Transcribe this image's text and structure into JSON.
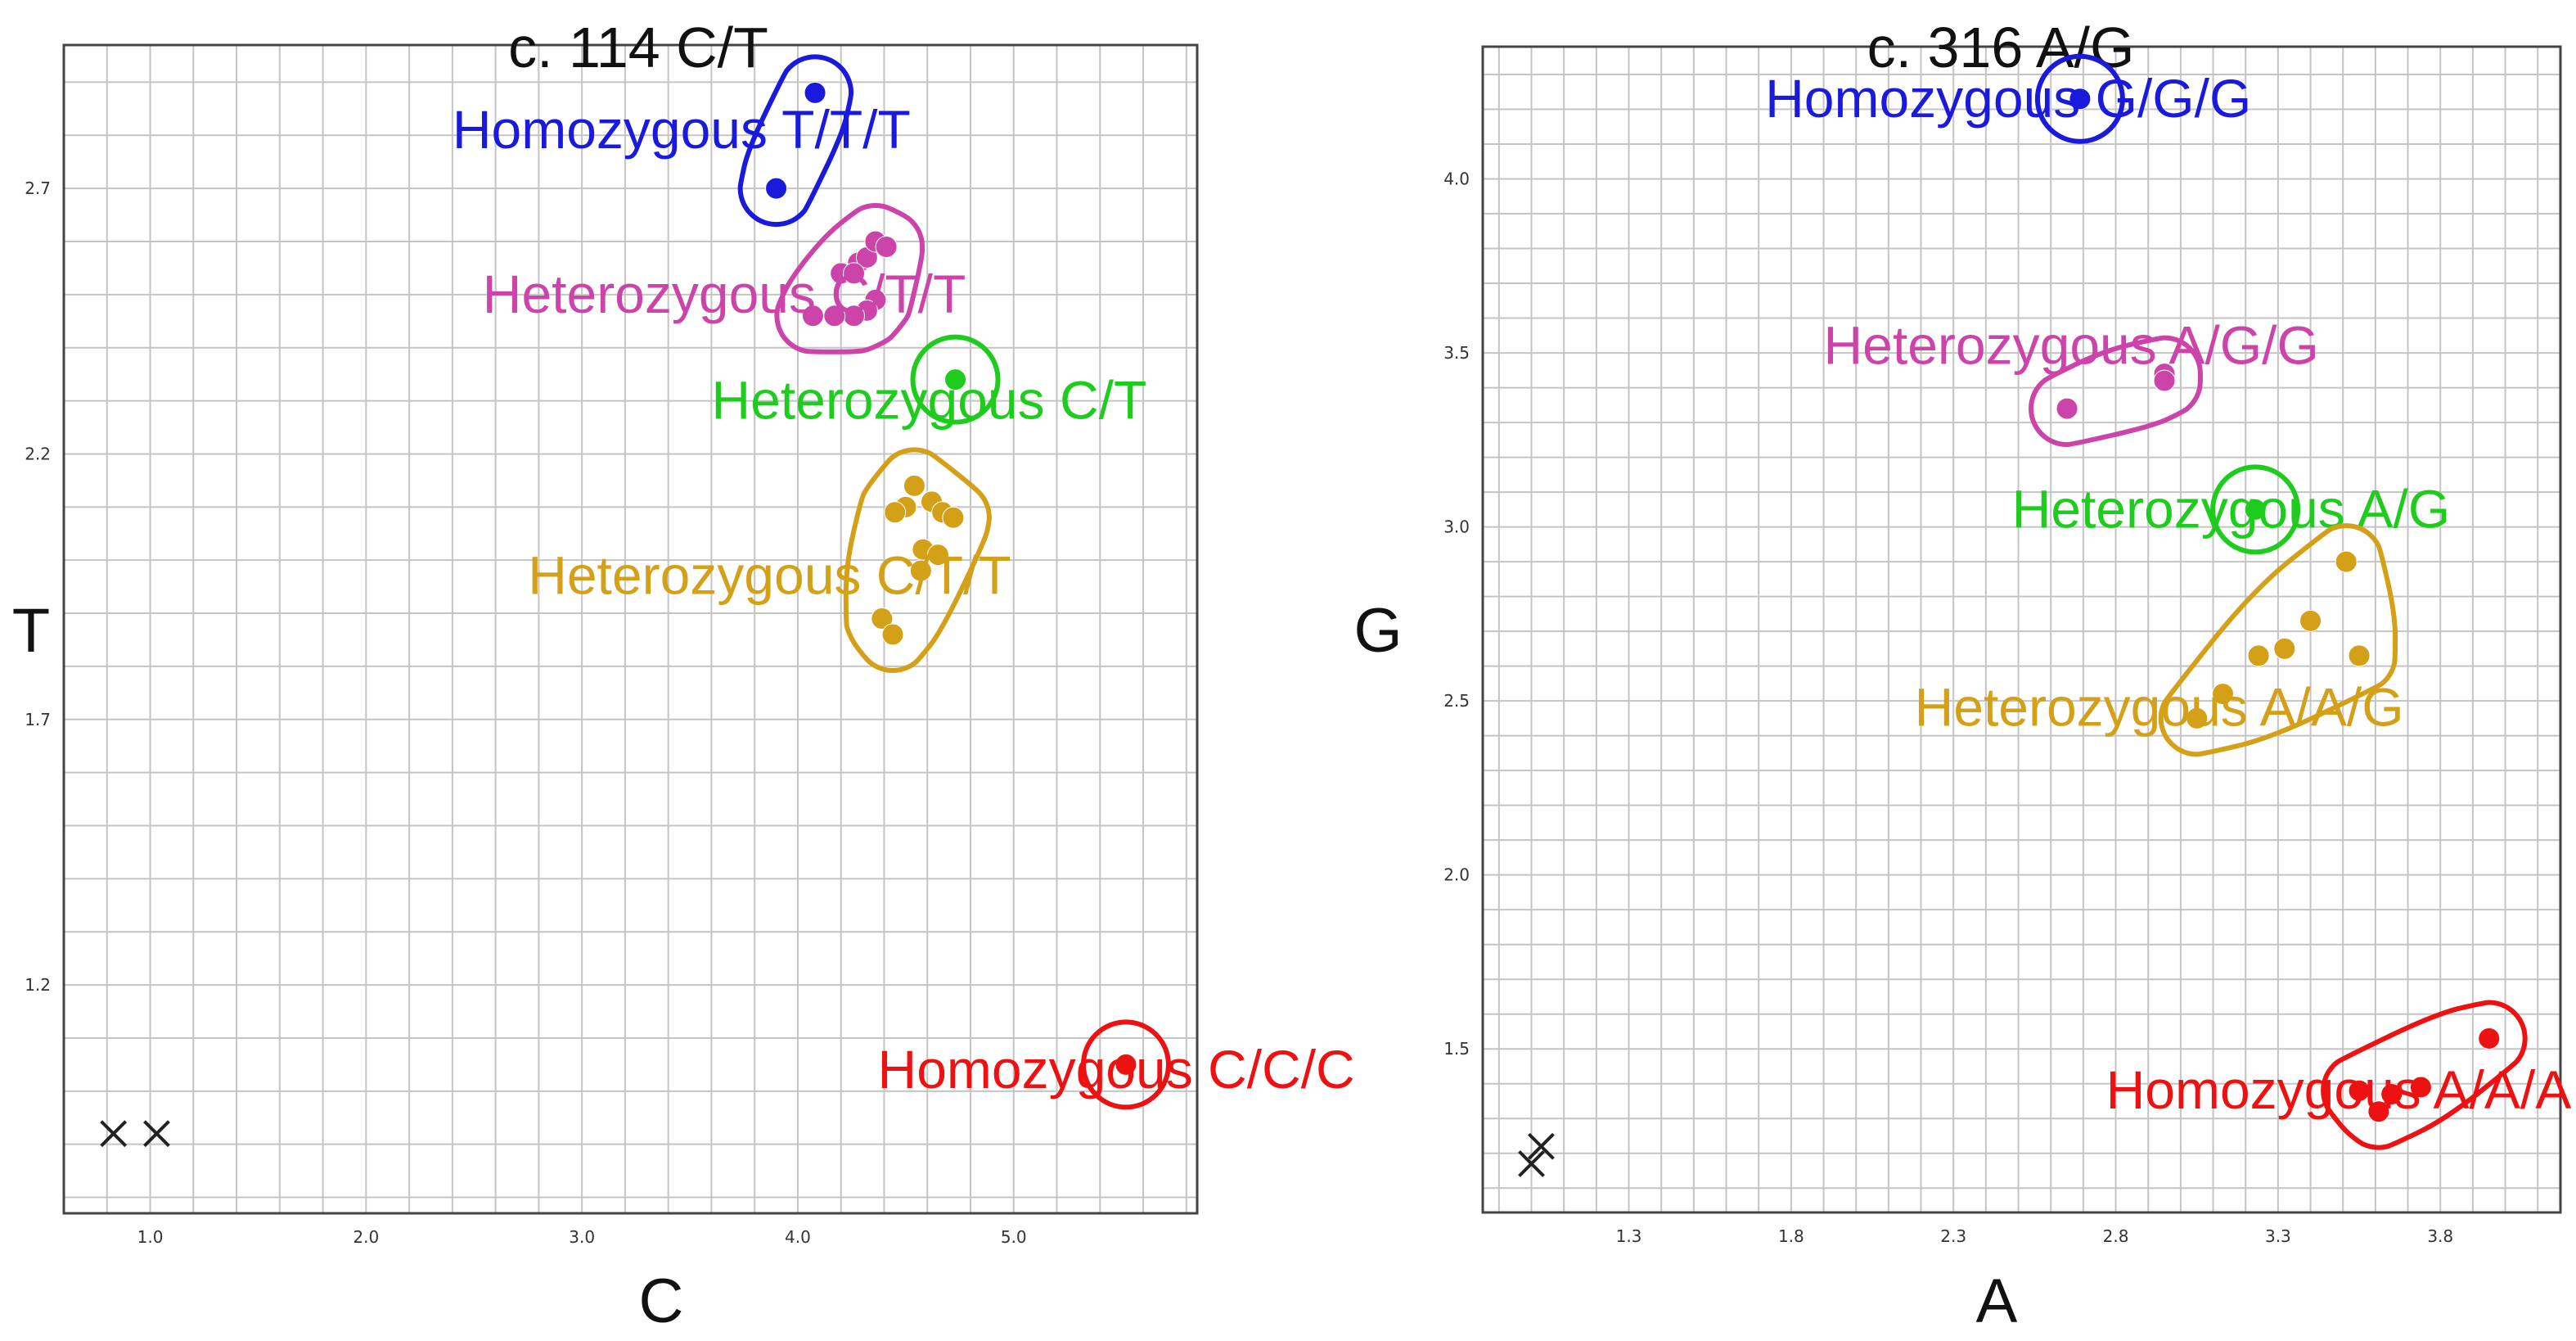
{
  "chart_data": [
    {
      "type": "scatter",
      "title": "c. 114 C/T",
      "xlabel": "C",
      "ylabel": "T",
      "xlim": [
        0.6,
        5.85
      ],
      "ylim": [
        0.77,
        2.97
      ],
      "xticks": [
        1.0,
        2.0,
        3.0,
        4.0,
        5.0
      ],
      "xtick_labels": [
        "1.0",
        "2.0",
        "3.0",
        "4.0",
        "5.0"
      ],
      "yticks": [
        1.2,
        1.7,
        2.2,
        2.7
      ],
      "ytick_labels": [
        "1.2",
        "1.7",
        "2.2",
        "2.7"
      ],
      "grid": true,
      "series": [
        {
          "name": "Homozygous T/T/T",
          "color": "#1a1adc",
          "points": [
            [
              4.08,
              2.88
            ],
            [
              3.9,
              2.7
            ]
          ],
          "label_at": [
            2.4,
            2.81
          ]
        },
        {
          "name": "Heterozygous C/T/T",
          "color": "#cc44aa",
          "points": [
            [
              4.2,
              2.54
            ],
            [
              4.28,
              2.56
            ],
            [
              4.32,
              2.57
            ],
            [
              4.36,
              2.6
            ],
            [
              4.41,
              2.59
            ],
            [
              4.26,
              2.54
            ],
            [
              4.36,
              2.49
            ],
            [
              4.32,
              2.47
            ],
            [
              4.26,
              2.46
            ],
            [
              4.17,
              2.46
            ],
            [
              4.07,
              2.46
            ]
          ],
          "label_at": [
            2.54,
            2.5
          ]
        },
        {
          "name": "Heterozygous C/T",
          "color": "#1ecc1e",
          "points": [
            [
              4.73,
              2.34
            ]
          ],
          "label_at": [
            3.6,
            2.3
          ]
        },
        {
          "name": "Heterozygous C/T/T",
          "color": "#d4a017",
          "points": [
            [
              4.54,
              2.14
            ],
            [
              4.5,
              2.1
            ],
            [
              4.45,
              2.09
            ],
            [
              4.62,
              2.11
            ],
            [
              4.67,
              2.09
            ],
            [
              4.72,
              2.08
            ],
            [
              4.58,
              2.02
            ],
            [
              4.65,
              2.01
            ],
            [
              4.57,
              1.98
            ],
            [
              4.39,
              1.89
            ],
            [
              4.44,
              1.86
            ]
          ],
          "label_at": [
            2.75,
            1.97
          ]
        },
        {
          "name": "Homozygous C/C/C",
          "color": "#ee1111",
          "points": [
            [
              5.52,
              1.05
            ]
          ],
          "label_at": [
            4.37,
            1.04
          ]
        }
      ],
      "no_template": {
        "marker": "x",
        "color": "#222222",
        "points": [
          [
            0.83,
            0.92
          ],
          [
            1.03,
            0.92
          ]
        ]
      }
    },
    {
      "type": "scatter",
      "title": "c. 316 A/G",
      "xlabel": "A",
      "ylabel": "G",
      "xlim": [
        0.85,
        4.17
      ],
      "ylim": [
        1.03,
        4.38
      ],
      "xticks": [
        1.3,
        1.8,
        2.3,
        2.8,
        3.3,
        3.8
      ],
      "xtick_labels": [
        "1.3",
        "1.8",
        "2.3",
        "2.8",
        "3.3",
        "3.8"
      ],
      "yticks": [
        1.5,
        2.0,
        2.5,
        3.0,
        3.5,
        4.0
      ],
      "ytick_labels": [
        "1.5",
        "2.0",
        "2.5",
        "3.0",
        "3.5",
        "4.0"
      ],
      "grid": true,
      "series": [
        {
          "name": "Homozygous G/G/G",
          "color": "#1a1adc",
          "points": [
            [
              2.69,
              4.23
            ]
          ],
          "label_at": [
            1.72,
            4.23
          ]
        },
        {
          "name": "Heterozygous A/G/G",
          "color": "#cc44aa",
          "points": [
            [
              2.65,
              3.34
            ],
            [
              2.95,
              3.44
            ],
            [
              2.95,
              3.42
            ]
          ],
          "label_at": [
            1.9,
            3.52
          ]
        },
        {
          "name": "Heterozygous A/G",
          "color": "#1ecc1e",
          "points": [
            [
              3.23,
              3.05
            ]
          ],
          "label_at": [
            2.48,
            3.05
          ]
        },
        {
          "name": "Heterozygous A/A/G",
          "color": "#d4a017",
          "points": [
            [
              3.05,
              2.45
            ],
            [
              3.13,
              2.52
            ],
            [
              3.24,
              2.63
            ],
            [
              3.32,
              2.65
            ],
            [
              3.4,
              2.73
            ],
            [
              3.51,
              2.9
            ],
            [
              3.55,
              2.63
            ]
          ],
          "label_at": [
            2.18,
            2.48
          ]
        },
        {
          "name": "Homozygous A/A/A",
          "color": "#ee1111",
          "points": [
            [
              3.55,
              1.38
            ],
            [
              3.61,
              1.32
            ],
            [
              3.65,
              1.37
            ],
            [
              3.74,
              1.39
            ],
            [
              3.95,
              1.53
            ]
          ],
          "label_at": [
            2.77,
            1.38
          ]
        }
      ],
      "no_template": {
        "marker": "x",
        "color": "#222222",
        "points": [
          [
            1.0,
            1.17
          ],
          [
            1.03,
            1.22
          ]
        ]
      }
    }
  ]
}
